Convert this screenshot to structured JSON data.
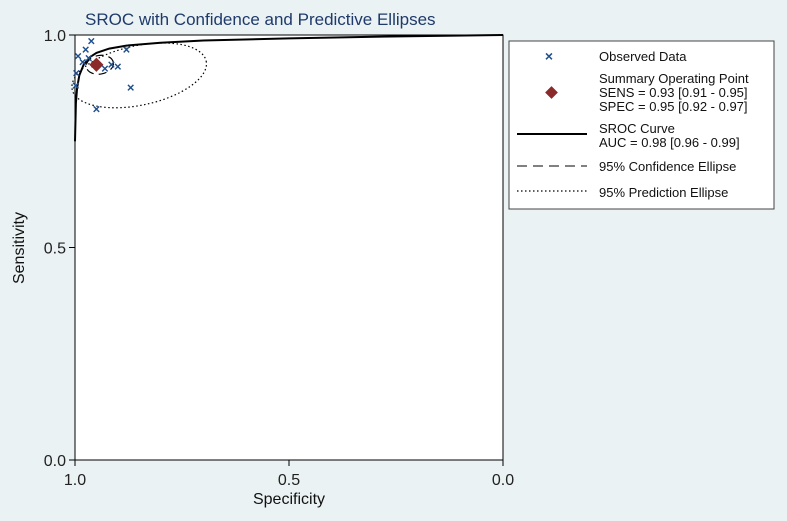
{
  "chart_data": {
    "type": "scatter",
    "title": "SROC with Confidence and Predictive Ellipses",
    "xlabel": "Specificity",
    "ylabel": "Sensitivity",
    "xlim": [
      1.0,
      0.0
    ],
    "ylim": [
      0.0,
      1.0
    ],
    "x_ticks": [
      {
        "value": 1.0,
        "label": "1.0"
      },
      {
        "value": 0.5,
        "label": "0.5"
      },
      {
        "value": 0.0,
        "label": "0.0"
      }
    ],
    "y_ticks": [
      {
        "value": 0.0,
        "label": "0.0"
      },
      {
        "value": 0.5,
        "label": "0.5"
      },
      {
        "value": 1.0,
        "label": "1.0"
      }
    ],
    "observed": [
      {
        "spec": 0.998,
        "sens": 0.88
      },
      {
        "spec": 0.997,
        "sens": 0.91
      },
      {
        "spec": 0.993,
        "sens": 0.95
      },
      {
        "spec": 0.982,
        "sens": 0.935
      },
      {
        "spec": 0.975,
        "sens": 0.965
      },
      {
        "spec": 0.968,
        "sens": 0.945
      },
      {
        "spec": 0.962,
        "sens": 0.985
      },
      {
        "spec": 0.955,
        "sens": 0.93
      },
      {
        "spec": 0.95,
        "sens": 0.825
      },
      {
        "spec": 0.93,
        "sens": 0.92
      },
      {
        "spec": 0.915,
        "sens": 0.93
      },
      {
        "spec": 0.9,
        "sens": 0.925
      },
      {
        "spec": 0.88,
        "sens": 0.965
      },
      {
        "spec": 0.87,
        "sens": 0.875
      }
    ],
    "summary_point": {
      "spec": 0.95,
      "sens": 0.93
    },
    "sroc_curve": [
      {
        "spec": 1.0,
        "sens": 0.75
      },
      {
        "spec": 0.998,
        "sens": 0.84
      },
      {
        "spec": 0.995,
        "sens": 0.875
      },
      {
        "spec": 0.99,
        "sens": 0.905
      },
      {
        "spec": 0.98,
        "sens": 0.93
      },
      {
        "spec": 0.965,
        "sens": 0.948
      },
      {
        "spec": 0.95,
        "sens": 0.958
      },
      {
        "spec": 0.92,
        "sens": 0.968
      },
      {
        "spec": 0.88,
        "sens": 0.975
      },
      {
        "spec": 0.8,
        "sens": 0.982
      },
      {
        "spec": 0.7,
        "sens": 0.987
      },
      {
        "spec": 0.5,
        "sens": 0.992
      },
      {
        "spec": 0.3,
        "sens": 0.996
      },
      {
        "spec": 0.0,
        "sens": 1.0
      }
    ],
    "confidence_ellipse": {
      "center_spec": 0.942,
      "center_sens": 0.93,
      "spec_radius": 0.032,
      "sens_radius": 0.022,
      "rotation_deg": -10
    },
    "prediction_ellipse": {
      "center_spec": 0.85,
      "center_sens": 0.905,
      "spec_radius": 0.16,
      "sens_radius": 0.07,
      "rotation_deg": -12
    },
    "legend": {
      "observed": "Observed Data",
      "summary_title": "Summary Operating Point",
      "summary_sens": "SENS = 0.93 [0.91 - 0.95]",
      "summary_spec": "SPEC = 0.95 [0.92 - 0.97]",
      "sroc_title": "SROC Curve",
      "sroc_auc": "AUC = 0.98 [0.96 - 0.99]",
      "confidence": "95% Confidence Ellipse",
      "prediction": "95% Prediction Ellipse"
    },
    "colors": {
      "observed": "#1f4e8c",
      "summary": "#8b2a2a",
      "line": "#000000",
      "title": "#1f3a6b"
    }
  }
}
